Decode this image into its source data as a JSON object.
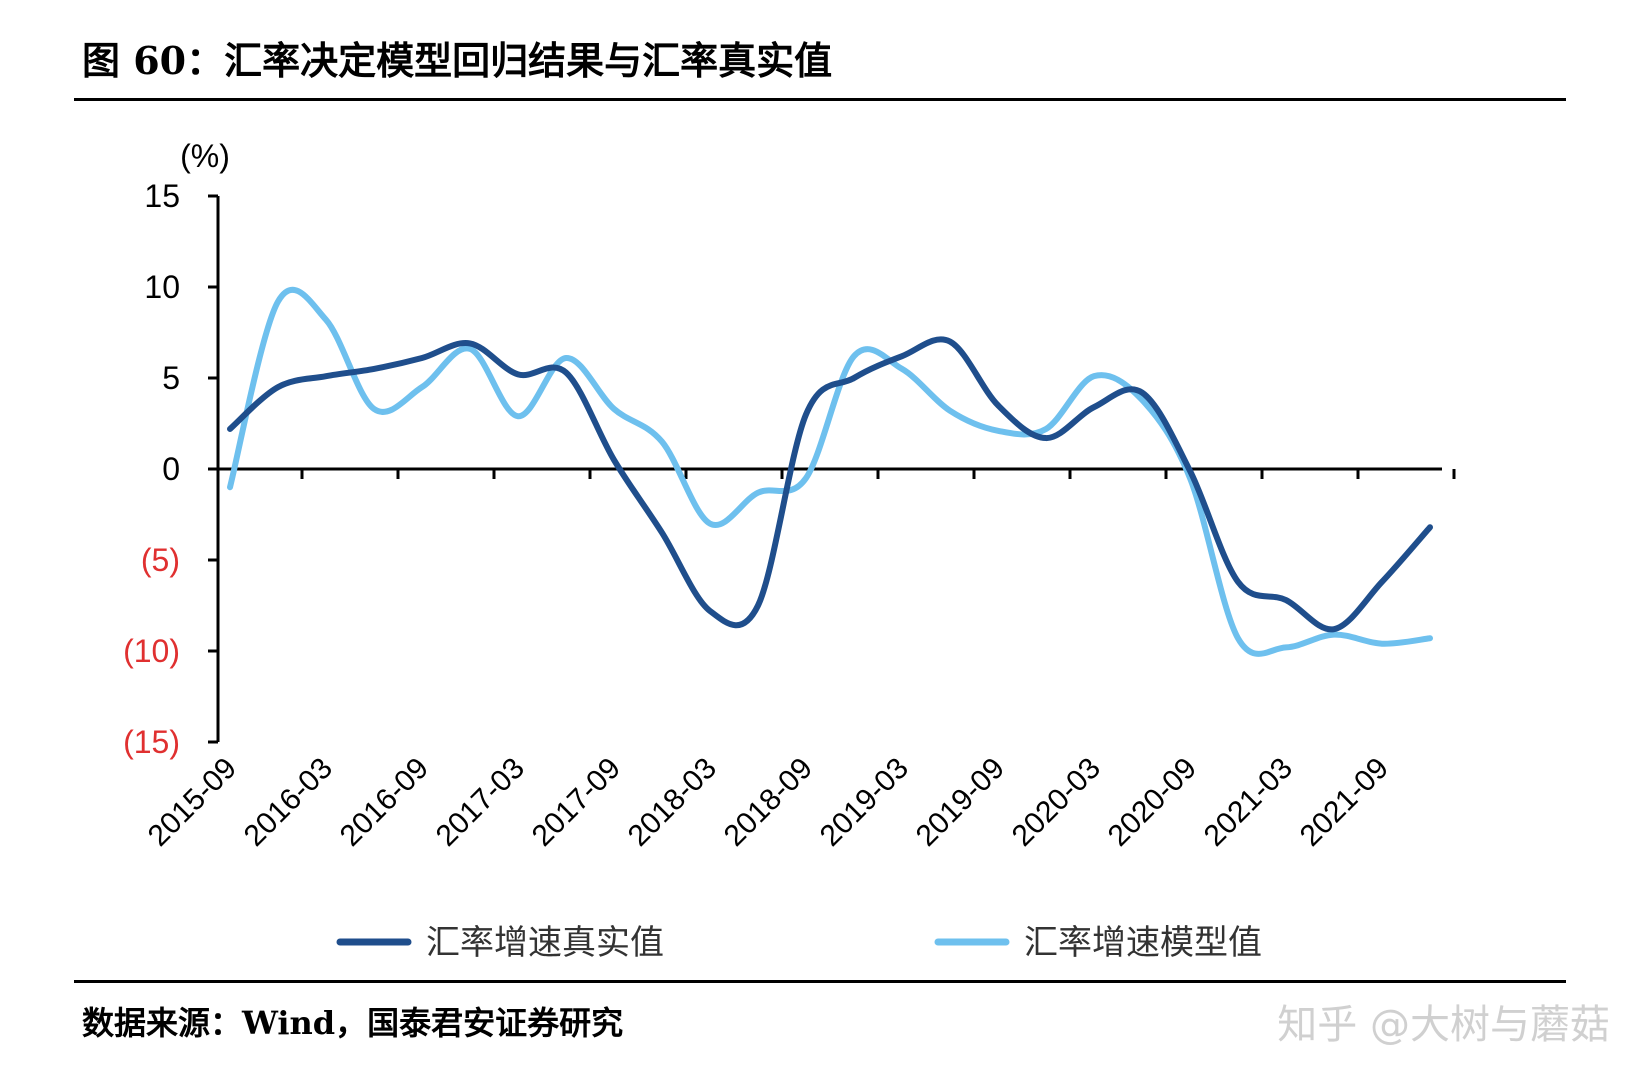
{
  "figure_title": "图 60：汇率决定模型回归结果与汇率真实值",
  "source_note": "数据来源：Wind，国泰君安证券研究",
  "watermark": "知乎 @大树与蘑菇",
  "colors": {
    "real": "#1F4E8C",
    "model": "#6EC0EE",
    "negative_tick": "#E03030",
    "positive_tick": "#000000"
  },
  "chart_data": {
    "type": "line",
    "title": "",
    "unit_label": "(%)",
    "ylim": [
      -15,
      15
    ],
    "y_ticks": [
      15,
      10,
      5,
      0,
      -5,
      -10,
      -15
    ],
    "y_tick_labels": [
      "15",
      "10",
      "5",
      "0",
      "(5)",
      "(10)",
      "(15)"
    ],
    "x_tick_labels": [
      "2015-09",
      "2016-03",
      "2016-09",
      "2017-03",
      "2017-09",
      "2018-03",
      "2018-09",
      "2019-03",
      "2019-09",
      "2020-03",
      "2020-09",
      "2021-03",
      "2021-09"
    ],
    "x_range": [
      0,
      25
    ],
    "grid": false,
    "legend_position": "bottom",
    "series": [
      {
        "name": "汇率增速真实值",
        "x": [
          0,
          1,
          2,
          3,
          4,
          5,
          6,
          7,
          8,
          9,
          10,
          11,
          12,
          13,
          14,
          15,
          16,
          17,
          18,
          19,
          20,
          21,
          22,
          23,
          24,
          25
        ],
        "values": [
          2.2,
          4.5,
          5.1,
          5.5,
          6.1,
          6.9,
          5.2,
          5.3,
          0.5,
          -3.5,
          -7.8,
          -7.5,
          3.0,
          5.0,
          6.2,
          7.0,
          3.5,
          1.7,
          3.4,
          4.2,
          -0.1,
          -6.2,
          -7.2,
          -8.8,
          -6.2,
          -3.2
        ]
      },
      {
        "name": "汇率增速模型值",
        "x": [
          0,
          1,
          2,
          3,
          4,
          5,
          6,
          7,
          8,
          9,
          10,
          11,
          12,
          13,
          14,
          15,
          16,
          17,
          18,
          19,
          20,
          21,
          22,
          23,
          24,
          25
        ],
        "values": [
          -1.0,
          9.2,
          8.2,
          3.3,
          4.5,
          6.6,
          2.9,
          6.1,
          3.3,
          1.5,
          -3.0,
          -1.3,
          -0.5,
          6.2,
          5.5,
          3.2,
          2.1,
          2.2,
          5.1,
          3.8,
          -0.5,
          -9.3,
          -9.8,
          -9.1,
          -9.6,
          -9.3
        ]
      }
    ]
  }
}
